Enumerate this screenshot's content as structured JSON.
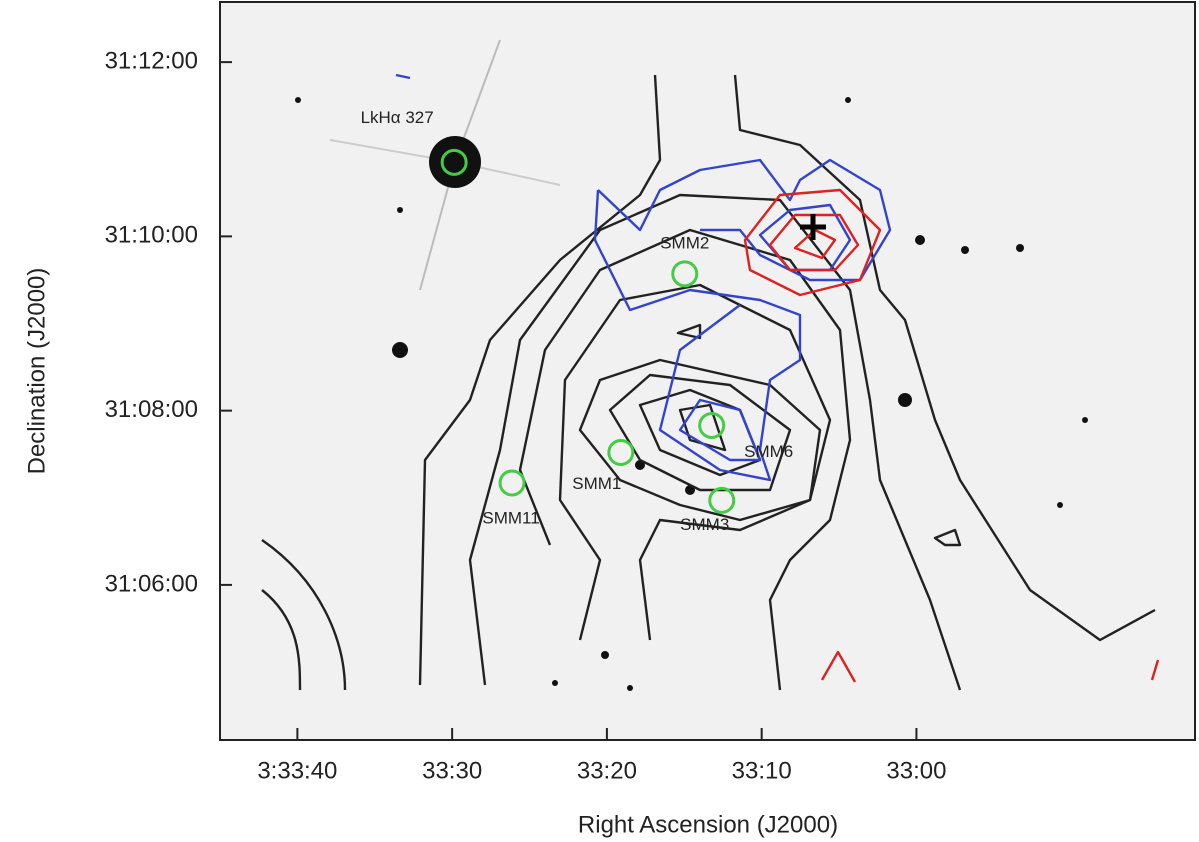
{
  "chart_data": {
    "type": "image",
    "xlabel": "Right Ascension (J2000)",
    "ylabel": "Declination (J2000)",
    "xlim": [
      45,
      -18
    ],
    "ylim": [
      4.22,
      12.69
    ],
    "xticks": [
      {
        "value": 40,
        "label": "3:33:40"
      },
      {
        "value": 30,
        "label": "33:30"
      },
      {
        "value": 20,
        "label": "33:20"
      },
      {
        "value": 10,
        "label": "33:10"
      },
      {
        "value": 0,
        "label": "33:00"
      }
    ],
    "yticks": [
      {
        "value": 12,
        "label": "31:12:00"
      },
      {
        "value": 10,
        "label": "31:10:00"
      },
      {
        "value": 8,
        "label": "31:08:00"
      },
      {
        "value": 6,
        "label": "31:06:00"
      }
    ],
    "marker_color": "#44cc44",
    "sources": [
      {
        "name": "LkHα 327",
        "x": 29.87,
        "y": 10.85
      },
      {
        "name": "SMM2",
        "x": 14.97,
        "y": 9.57
      },
      {
        "name": "SMM6",
        "x": 13.23,
        "y": 7.83
      },
      {
        "name": "SMM1",
        "x": 19.1,
        "y": 7.52
      },
      {
        "name": "SMM3",
        "x": 12.58,
        "y": 6.97
      },
      {
        "name": "SMM11",
        "x": 26.13,
        "y": 7.17
      }
    ]
  }
}
